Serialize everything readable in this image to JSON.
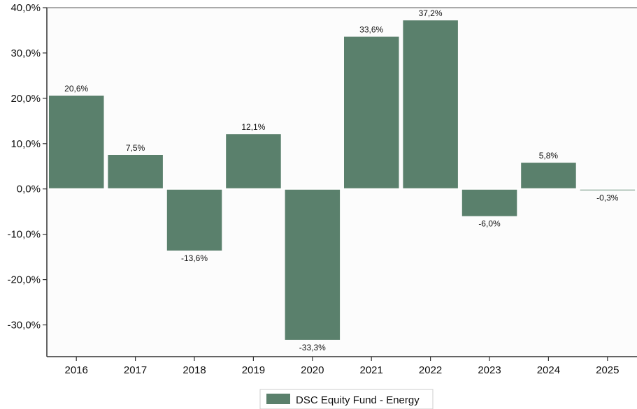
{
  "chart_data": {
    "type": "bar",
    "categories": [
      "2016",
      "2017",
      "2018",
      "2019",
      "2020",
      "2021",
      "2022",
      "2023",
      "2024",
      "2025"
    ],
    "series": [
      {
        "name": "DSC Equity Fund - Energy",
        "values": [
          20.6,
          7.5,
          -13.6,
          12.1,
          -33.3,
          33.6,
          37.2,
          -6.0,
          5.8,
          -0.3
        ],
        "labels": [
          "20,6%",
          "7,5%",
          "-13,6%",
          "12,1%",
          "-33,3%",
          "33,6%",
          "37,2%",
          "-6,0%",
          "5,8%",
          "-0,3%"
        ]
      }
    ],
    "ylim": [
      -37,
      40
    ],
    "yticks": [
      40,
      30,
      20,
      10,
      0,
      -10,
      -20,
      -30
    ],
    "ytick_labels": [
      "40,0%",
      "30,0%",
      "20,0%",
      "10,0%",
      "0,0%",
      "-10,0%",
      "-20,0%",
      "-30,0%"
    ],
    "xlabel": "",
    "ylabel": "",
    "title": "",
    "legend_position": "bottom-center",
    "grid": false,
    "colors": {
      "bar": "#5a806c",
      "axis": "#333333",
      "plot_bg": "#fcfcfc",
      "zero_line": "#ffffff"
    }
  }
}
